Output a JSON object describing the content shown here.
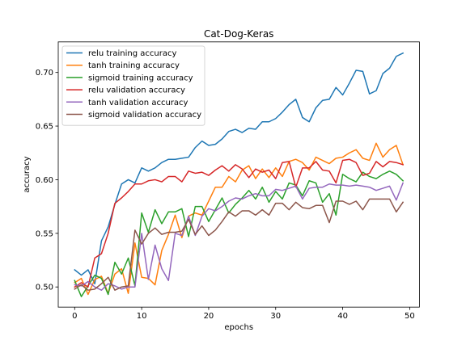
{
  "chart_data": {
    "type": "line",
    "title": "Cat-Dog-Keras",
    "xlabel": "epochs",
    "ylabel": "accuracy",
    "xlim": [
      -2.45,
      51.45
    ],
    "ylim": [
      0.4812,
      0.7285
    ],
    "x_ticks": [
      0,
      10,
      20,
      30,
      40,
      50
    ],
    "y_ticks": [
      0.5,
      0.55,
      0.6,
      0.65,
      0.7
    ],
    "y_tick_labels": [
      "0.50",
      "0.55",
      "0.60",
      "0.65",
      "0.70"
    ],
    "grid": false,
    "legend_position": "upper left",
    "x": [
      0,
      1,
      2,
      3,
      4,
      5,
      6,
      7,
      8,
      9,
      10,
      11,
      12,
      13,
      14,
      15,
      16,
      17,
      18,
      19,
      20,
      21,
      22,
      23,
      24,
      25,
      26,
      27,
      28,
      29,
      30,
      31,
      32,
      33,
      34,
      35,
      36,
      37,
      38,
      39,
      40,
      41,
      42,
      43,
      44,
      45,
      46,
      47,
      48,
      49
    ],
    "series": [
      {
        "name": "relu training accuracy",
        "color": "#1f77b4",
        "values": [
          0.516,
          0.511,
          0.516,
          0.503,
          0.543,
          0.556,
          0.577,
          0.596,
          0.6,
          0.597,
          0.611,
          0.608,
          0.611,
          0.616,
          0.619,
          0.619,
          0.62,
          0.621,
          0.63,
          0.636,
          0.632,
          0.633,
          0.638,
          0.645,
          0.647,
          0.644,
          0.648,
          0.647,
          0.654,
          0.654,
          0.657,
          0.663,
          0.67,
          0.675,
          0.658,
          0.654,
          0.667,
          0.674,
          0.675,
          0.686,
          0.679,
          0.69,
          0.702,
          0.701,
          0.68,
          0.683,
          0.699,
          0.704,
          0.715,
          0.718
        ]
      },
      {
        "name": "tanh training accuracy",
        "color": "#ff7f0e",
        "values": [
          0.504,
          0.508,
          0.493,
          0.507,
          0.51,
          0.494,
          0.512,
          0.517,
          0.494,
          0.541,
          0.509,
          0.508,
          0.502,
          0.534,
          0.549,
          0.567,
          0.546,
          0.566,
          0.569,
          0.567,
          0.58,
          0.593,
          0.593,
          0.603,
          0.598,
          0.609,
          0.613,
          0.601,
          0.61,
          0.602,
          0.611,
          0.603,
          0.617,
          0.619,
          0.616,
          0.609,
          0.621,
          0.618,
          0.615,
          0.62,
          0.621,
          0.625,
          0.628,
          0.62,
          0.618,
          0.634,
          0.621,
          0.628,
          0.632,
          0.614
        ]
      },
      {
        "name": "sigmoid training accuracy",
        "color": "#2ca02c",
        "values": [
          0.506,
          0.491,
          0.501,
          0.511,
          0.508,
          0.493,
          0.523,
          0.512,
          0.527,
          0.501,
          0.569,
          0.551,
          0.572,
          0.559,
          0.57,
          0.57,
          0.573,
          0.547,
          0.575,
          0.575,
          0.561,
          0.572,
          0.583,
          0.569,
          0.577,
          0.583,
          0.59,
          0.582,
          0.593,
          0.579,
          0.589,
          0.582,
          0.597,
          0.595,
          0.585,
          0.599,
          0.597,
          0.579,
          0.587,
          0.567,
          0.605,
          0.601,
          0.598,
          0.607,
          0.603,
          0.601,
          0.605,
          0.608,
          0.605,
          0.599
        ]
      },
      {
        "name": "relu validation accuracy",
        "color": "#d62728",
        "values": [
          0.5,
          0.504,
          0.5,
          0.527,
          0.531,
          0.55,
          0.578,
          0.583,
          0.589,
          0.596,
          0.596,
          0.599,
          0.6,
          0.598,
          0.603,
          0.603,
          0.598,
          0.608,
          0.606,
          0.607,
          0.604,
          0.609,
          0.613,
          0.608,
          0.614,
          0.61,
          0.602,
          0.61,
          0.607,
          0.609,
          0.601,
          0.616,
          0.617,
          0.593,
          0.611,
          0.611,
          0.617,
          0.609,
          0.608,
          0.597,
          0.618,
          0.619,
          0.616,
          0.604,
          0.606,
          0.617,
          0.612,
          0.617,
          0.616,
          0.614
        ]
      },
      {
        "name": "tanh validation accuracy",
        "color": "#9467bd",
        "values": [
          0.502,
          0.501,
          0.505,
          0.5,
          0.497,
          0.503,
          0.501,
          0.498,
          0.5,
          0.5,
          0.55,
          0.507,
          0.539,
          0.517,
          0.506,
          0.55,
          0.548,
          0.566,
          0.548,
          0.566,
          0.573,
          0.571,
          0.575,
          0.58,
          0.583,
          0.582,
          0.585,
          0.587,
          0.585,
          0.585,
          0.591,
          0.59,
          0.592,
          0.594,
          0.582,
          0.592,
          0.593,
          0.593,
          0.596,
          0.595,
          0.595,
          0.594,
          0.595,
          0.594,
          0.593,
          0.59,
          0.592,
          0.594,
          0.581,
          0.597
        ]
      },
      {
        "name": "sigmoid validation accuracy",
        "color": "#8c564b",
        "values": [
          0.498,
          0.502,
          0.497,
          0.498,
          0.503,
          0.509,
          0.497,
          0.5,
          0.501,
          0.553,
          0.54,
          0.55,
          0.555,
          0.549,
          0.551,
          0.551,
          0.552,
          0.563,
          0.549,
          0.557,
          0.548,
          0.553,
          0.561,
          0.57,
          0.566,
          0.571,
          0.571,
          0.567,
          0.572,
          0.567,
          0.578,
          0.578,
          0.572,
          0.579,
          0.574,
          0.573,
          0.576,
          0.576,
          0.56,
          0.58,
          0.58,
          0.577,
          0.58,
          0.572,
          0.582,
          0.582,
          0.582,
          0.582,
          0.57,
          0.579
        ]
      }
    ]
  }
}
